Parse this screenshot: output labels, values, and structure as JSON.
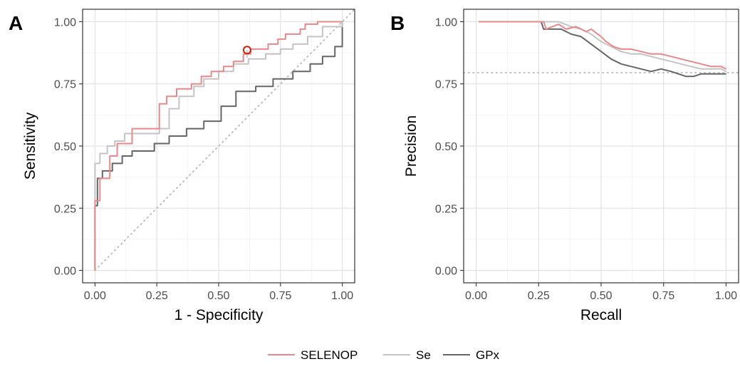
{
  "chart_data": [
    {
      "panel": "A",
      "type": "line",
      "xlabel": "1 - Specificity",
      "ylabel": "Sensitivity",
      "xlim": [
        -0.05,
        1.05
      ],
      "ylim": [
        -0.05,
        1.05
      ],
      "xticks": [
        "0.00",
        "0.25",
        "0.50",
        "0.75",
        "1.00"
      ],
      "yticks": [
        "0.00",
        "0.25",
        "0.50",
        "0.75",
        "1.00"
      ],
      "tick_values": [
        0,
        0.25,
        0.5,
        0.75,
        1.0
      ],
      "grid": true,
      "reference_line": {
        "style": "dotted",
        "from": [
          0,
          0
        ],
        "to": [
          1.05,
          1.05
        ]
      },
      "highlight_point": {
        "series": "SELENOP",
        "x": 0.615,
        "y": 0.886,
        "marker": "open-circle",
        "color": "#cc2200"
      },
      "series": [
        {
          "name": "SELENOP",
          "color": "#e8888a",
          "x": [
            0,
            0,
            0.02,
            0.02,
            0.06,
            0.06,
            0.09,
            0.09,
            0.15,
            0.15,
            0.26,
            0.26,
            0.29,
            0.29,
            0.33,
            0.33,
            0.39,
            0.39,
            0.43,
            0.43,
            0.47,
            0.47,
            0.52,
            0.52,
            0.56,
            0.56,
            0.6,
            0.6,
            0.63,
            0.63,
            0.7,
            0.7,
            0.74,
            0.74,
            0.77,
            0.77,
            0.83,
            0.83,
            0.85,
            0.85,
            0.9,
            0.9,
            1.0
          ],
          "y": [
            0,
            0.28,
            0.28,
            0.37,
            0.37,
            0.46,
            0.46,
            0.51,
            0.51,
            0.57,
            0.57,
            0.67,
            0.67,
            0.7,
            0.7,
            0.73,
            0.73,
            0.75,
            0.75,
            0.78,
            0.78,
            0.8,
            0.8,
            0.82,
            0.82,
            0.84,
            0.84,
            0.87,
            0.87,
            0.89,
            0.89,
            0.91,
            0.91,
            0.93,
            0.93,
            0.95,
            0.95,
            0.97,
            0.97,
            0.99,
            0.99,
            1.0,
            1.0
          ]
        },
        {
          "name": "Se",
          "color": "#c4c4c4",
          "x": [
            0,
            0,
            0.02,
            0.02,
            0.05,
            0.05,
            0.08,
            0.08,
            0.12,
            0.12,
            0.26,
            0.26,
            0.3,
            0.3,
            0.34,
            0.34,
            0.4,
            0.4,
            0.44,
            0.44,
            0.5,
            0.5,
            0.56,
            0.56,
            0.62,
            0.62,
            0.69,
            0.69,
            0.75,
            0.75,
            0.8,
            0.8,
            0.86,
            0.86,
            0.92,
            0.92,
            1.0,
            1.0
          ],
          "y": [
            0,
            0.43,
            0.43,
            0.47,
            0.47,
            0.5,
            0.5,
            0.52,
            0.52,
            0.55,
            0.55,
            0.57,
            0.57,
            0.65,
            0.65,
            0.7,
            0.7,
            0.74,
            0.74,
            0.77,
            0.77,
            0.8,
            0.8,
            0.83,
            0.83,
            0.85,
            0.85,
            0.87,
            0.87,
            0.89,
            0.89,
            0.91,
            0.91,
            0.94,
            0.94,
            0.98,
            0.98,
            1.0
          ]
        },
        {
          "name": "GPx",
          "color": "#666666",
          "x": [
            0,
            0,
            0.01,
            0.01,
            0.03,
            0.03,
            0.07,
            0.07,
            0.11,
            0.11,
            0.15,
            0.15,
            0.24,
            0.24,
            0.3,
            0.3,
            0.37,
            0.37,
            0.44,
            0.44,
            0.51,
            0.51,
            0.57,
            0.57,
            0.65,
            0.65,
            0.72,
            0.72,
            0.8,
            0.8,
            0.87,
            0.87,
            0.92,
            0.92,
            0.97,
            0.97,
            1.0,
            1.0
          ],
          "y": [
            0,
            0.26,
            0.26,
            0.37,
            0.37,
            0.4,
            0.4,
            0.43,
            0.43,
            0.46,
            0.46,
            0.48,
            0.48,
            0.51,
            0.51,
            0.54,
            0.54,
            0.57,
            0.57,
            0.6,
            0.6,
            0.66,
            0.66,
            0.72,
            0.72,
            0.74,
            0.74,
            0.77,
            0.77,
            0.8,
            0.8,
            0.83,
            0.83,
            0.86,
            0.86,
            0.9,
            0.9,
            1.0
          ]
        }
      ]
    },
    {
      "panel": "B",
      "type": "line",
      "xlabel": "Recall",
      "ylabel": "Precision",
      "xlim": [
        -0.05,
        1.05
      ],
      "ylim": [
        -0.05,
        1.05
      ],
      "xticks": [
        "0.00",
        "0.25",
        "0.50",
        "0.75",
        "1.00"
      ],
      "yticks": [
        "0.00",
        "0.25",
        "0.50",
        "0.75",
        "1.00"
      ],
      "tick_values": [
        0,
        0.25,
        0.5,
        0.75,
        1.0
      ],
      "grid": true,
      "reference_line": {
        "style": "dotted",
        "y": 0.795
      },
      "series": [
        {
          "name": "SELENOP",
          "color": "#e8888a",
          "x": [
            0.01,
            0.27,
            0.28,
            0.33,
            0.36,
            0.4,
            0.44,
            0.46,
            0.5,
            0.52,
            0.55,
            0.58,
            0.62,
            0.66,
            0.7,
            0.74,
            0.78,
            0.82,
            0.86,
            0.9,
            0.94,
            0.98,
            1.0
          ],
          "y": [
            1.0,
            1.0,
            0.97,
            0.99,
            0.97,
            0.98,
            0.96,
            0.97,
            0.94,
            0.92,
            0.9,
            0.89,
            0.89,
            0.88,
            0.87,
            0.87,
            0.86,
            0.85,
            0.84,
            0.83,
            0.82,
            0.82,
            0.81
          ]
        },
        {
          "name": "Se",
          "color": "#c4c4c4",
          "x": [
            0.01,
            0.27,
            0.33,
            0.38,
            0.42,
            0.46,
            0.5,
            0.54,
            0.58,
            0.62,
            0.66,
            0.7,
            0.74,
            0.78,
            0.82,
            0.86,
            0.9,
            0.94,
            0.98,
            1.0
          ],
          "y": [
            1.0,
            1.0,
            1.0,
            0.98,
            0.97,
            0.95,
            0.92,
            0.9,
            0.88,
            0.87,
            0.87,
            0.86,
            0.85,
            0.84,
            0.83,
            0.82,
            0.81,
            0.81,
            0.81,
            0.8
          ]
        },
        {
          "name": "GPx",
          "color": "#666666",
          "x": [
            0.01,
            0.26,
            0.27,
            0.34,
            0.38,
            0.42,
            0.46,
            0.5,
            0.54,
            0.58,
            0.62,
            0.66,
            0.7,
            0.74,
            0.78,
            0.81,
            0.84,
            0.87,
            0.9,
            0.94,
            0.98,
            1.0
          ],
          "y": [
            1.0,
            1.0,
            0.97,
            0.97,
            0.95,
            0.94,
            0.91,
            0.88,
            0.85,
            0.83,
            0.82,
            0.81,
            0.8,
            0.81,
            0.8,
            0.79,
            0.78,
            0.78,
            0.79,
            0.79,
            0.79,
            0.79
          ]
        }
      ]
    }
  ],
  "legend": {
    "placement": "bottom",
    "items": [
      {
        "label": "SELENOP",
        "color": "#e8888a"
      },
      {
        "label": "Se",
        "color": "#c4c4c4"
      },
      {
        "label": "GPx",
        "color": "#666666"
      }
    ]
  }
}
